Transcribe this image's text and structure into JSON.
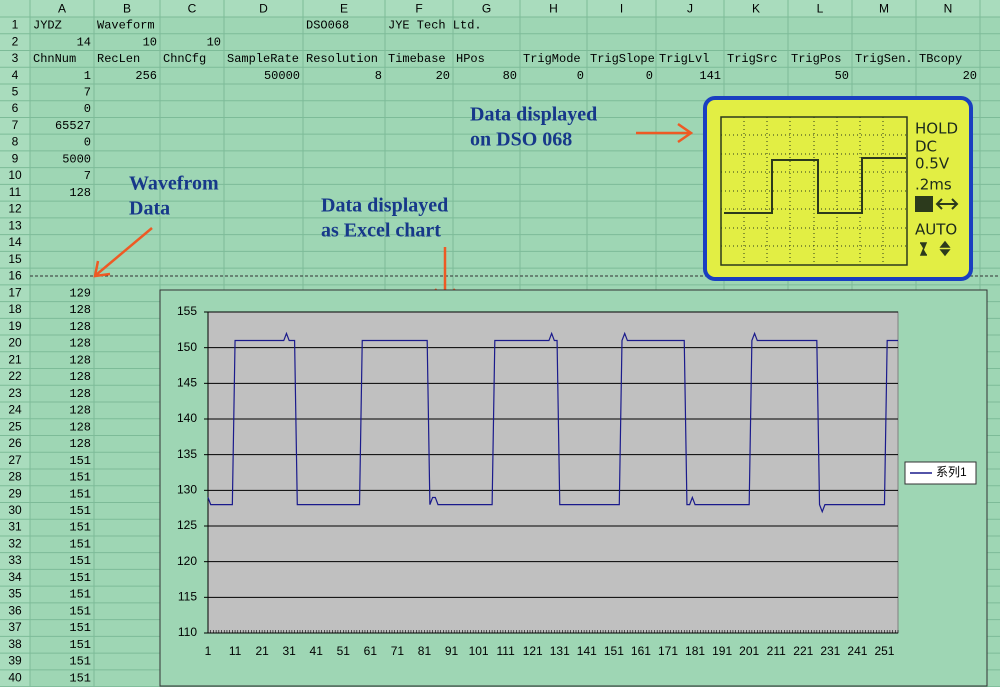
{
  "sheet": {
    "columns": [
      "A",
      "B",
      "C",
      "D",
      "E",
      "F",
      "G",
      "H",
      "I",
      "J",
      "K",
      "L",
      "M",
      "N"
    ],
    "row_numbers": [
      1,
      2,
      3,
      4,
      5,
      6,
      7,
      8,
      9,
      10,
      11,
      12,
      13,
      14,
      15,
      16,
      17,
      18,
      19,
      20,
      21,
      22,
      23,
      24,
      25,
      26,
      27,
      28,
      29,
      30,
      31,
      32,
      33,
      34,
      35,
      36,
      37,
      38,
      39,
      40
    ],
    "rows": [
      [
        "JYDZ",
        "Waveform",
        null,
        null,
        "DSO068",
        "JYE Tech Ltd."
      ],
      [
        14,
        10,
        10
      ],
      [
        "ChnNum",
        "RecLen",
        "ChnCfg",
        "SampleRate",
        "Resolution",
        "Timebase",
        "HPos",
        "TrigMode",
        "TrigSlope",
        "TrigLvl",
        "TrigSrc",
        "TrigPos",
        "TrigSen.",
        "TBcopy"
      ],
      [
        1,
        256,
        null,
        50000,
        8,
        20,
        80,
        0,
        0,
        141,
        null,
        50,
        null,
        20
      ],
      [
        7
      ],
      [
        0
      ],
      [
        65527
      ],
      [
        0
      ],
      [
        5000
      ],
      [
        7
      ],
      [
        128
      ]
    ]
  },
  "annotations": {
    "dso": [
      "Data displayed",
      "on DSO 068"
    ],
    "waveform": [
      "Wavefrom",
      "Data"
    ],
    "excel": [
      "Data displayed",
      "as Excel chart"
    ]
  },
  "lcd": {
    "status": "HOLD",
    "coupling": "DC",
    "volts": "0.5V",
    "timebase": ".2ms",
    "mode": "AUTO"
  },
  "chart_data": {
    "type": "line",
    "x": [
      1,
      2,
      3,
      4,
      5,
      6,
      7,
      8,
      9,
      10,
      11,
      12,
      13,
      14,
      15,
      16,
      17,
      18,
      19,
      20,
      21,
      22,
      23,
      24,
      25,
      26,
      27,
      28,
      29,
      30,
      31,
      32,
      33,
      34,
      35,
      36,
      37,
      38,
      39,
      40,
      41,
      42,
      43,
      44,
      45,
      46,
      47,
      48,
      49,
      50,
      51,
      52,
      53,
      54,
      55,
      56,
      57,
      58,
      59,
      60,
      61,
      62,
      63,
      64,
      65,
      66,
      67,
      68,
      69,
      70,
      71,
      72,
      73,
      74,
      75,
      76,
      77,
      78,
      79,
      80,
      81,
      82,
      83,
      84,
      85,
      86,
      87,
      88,
      89,
      90,
      91,
      92,
      93,
      94,
      95,
      96,
      97,
      98,
      99,
      100,
      101,
      102,
      103,
      104,
      105,
      106,
      107,
      108,
      109,
      110,
      111,
      112,
      113,
      114,
      115,
      116,
      117,
      118,
      119,
      120,
      121,
      122,
      123,
      124,
      125,
      126,
      127,
      128,
      129,
      130,
      131,
      132,
      133,
      134,
      135,
      136,
      137,
      138,
      139,
      140,
      141,
      142,
      143,
      144,
      145,
      146,
      147,
      148,
      149,
      150,
      151,
      152,
      153,
      154,
      155,
      156,
      157,
      158,
      159,
      160,
      161,
      162,
      163,
      164,
      165,
      166,
      167,
      168,
      169,
      170,
      171,
      172,
      173,
      174,
      175,
      176,
      177,
      178,
      179,
      180,
      181,
      182,
      183,
      184,
      185,
      186,
      187,
      188,
      189,
      190,
      191,
      192,
      193,
      194,
      195,
      196,
      197,
      198,
      199,
      200,
      201,
      202,
      203,
      204,
      205,
      206,
      207,
      208,
      209,
      210,
      211,
      212,
      213,
      214,
      215,
      216,
      217,
      218,
      219,
      220,
      221,
      222,
      223,
      224,
      225,
      226,
      227,
      228,
      229,
      230,
      231,
      232,
      233,
      234,
      235,
      236,
      237,
      238,
      239,
      240,
      241,
      242,
      243,
      244,
      245,
      246,
      247,
      248,
      249,
      250,
      251,
      252,
      253,
      254,
      255,
      256
    ],
    "series": [
      {
        "name": "系列1",
        "color": "#1a1a8c",
        "values": [
          129,
          128,
          128,
          128,
          128,
          128,
          128,
          128,
          128,
          128,
          151,
          151,
          151,
          151,
          151,
          151,
          151,
          151,
          151,
          151,
          151,
          151,
          151,
          151,
          151,
          151,
          151,
          151,
          151,
          152,
          151,
          151,
          151,
          128,
          128,
          128,
          128,
          128,
          128,
          128,
          128,
          128,
          128,
          128,
          128,
          128,
          128,
          128,
          128,
          128,
          128,
          128,
          128,
          128,
          128,
          128,
          128,
          151,
          151,
          151,
          151,
          151,
          151,
          151,
          151,
          151,
          151,
          151,
          151,
          151,
          151,
          151,
          151,
          151,
          151,
          151,
          151,
          151,
          151,
          151,
          151,
          151,
          128,
          129,
          129,
          128,
          128,
          128,
          128,
          128,
          128,
          128,
          128,
          128,
          128,
          128,
          128,
          128,
          128,
          128,
          128,
          128,
          128,
          128,
          128,
          128,
          151,
          151,
          151,
          151,
          151,
          151,
          151,
          151,
          151,
          151,
          151,
          151,
          151,
          151,
          151,
          151,
          151,
          151,
          151,
          151,
          151,
          152,
          151,
          151,
          128,
          128,
          128,
          128,
          128,
          128,
          128,
          128,
          128,
          128,
          128,
          128,
          128,
          128,
          128,
          128,
          128,
          128,
          128,
          128,
          128,
          128,
          128,
          151,
          152,
          151,
          151,
          151,
          151,
          151,
          151,
          151,
          151,
          151,
          151,
          151,
          151,
          151,
          151,
          151,
          151,
          151,
          151,
          151,
          151,
          151,
          151,
          128,
          128,
          129,
          128,
          128,
          128,
          128,
          128,
          128,
          128,
          128,
          128,
          128,
          128,
          128,
          128,
          128,
          128,
          128,
          128,
          128,
          128,
          128,
          128,
          151,
          152,
          151,
          151,
          151,
          151,
          151,
          151,
          151,
          151,
          151,
          151,
          151,
          151,
          151,
          151,
          151,
          151,
          151,
          151,
          151,
          151,
          151,
          151,
          151,
          128,
          127,
          128,
          128,
          128,
          128,
          128,
          128,
          128,
          128,
          128,
          128,
          128,
          128,
          128,
          128,
          128,
          128,
          128,
          128,
          128,
          128,
          128,
          128,
          128,
          151,
          151,
          151,
          151,
          151
        ]
      }
    ],
    "xlim": [
      1,
      256
    ],
    "xticks": [
      1,
      11,
      21,
      31,
      41,
      51,
      61,
      71,
      81,
      91,
      101,
      111,
      121,
      131,
      141,
      151,
      161,
      171,
      181,
      191,
      201,
      211,
      221,
      231,
      241,
      251
    ],
    "ylim": [
      110,
      155
    ],
    "yticks": [
      110,
      115,
      120,
      125,
      130,
      135,
      140,
      145,
      150,
      155
    ],
    "grid": true
  }
}
